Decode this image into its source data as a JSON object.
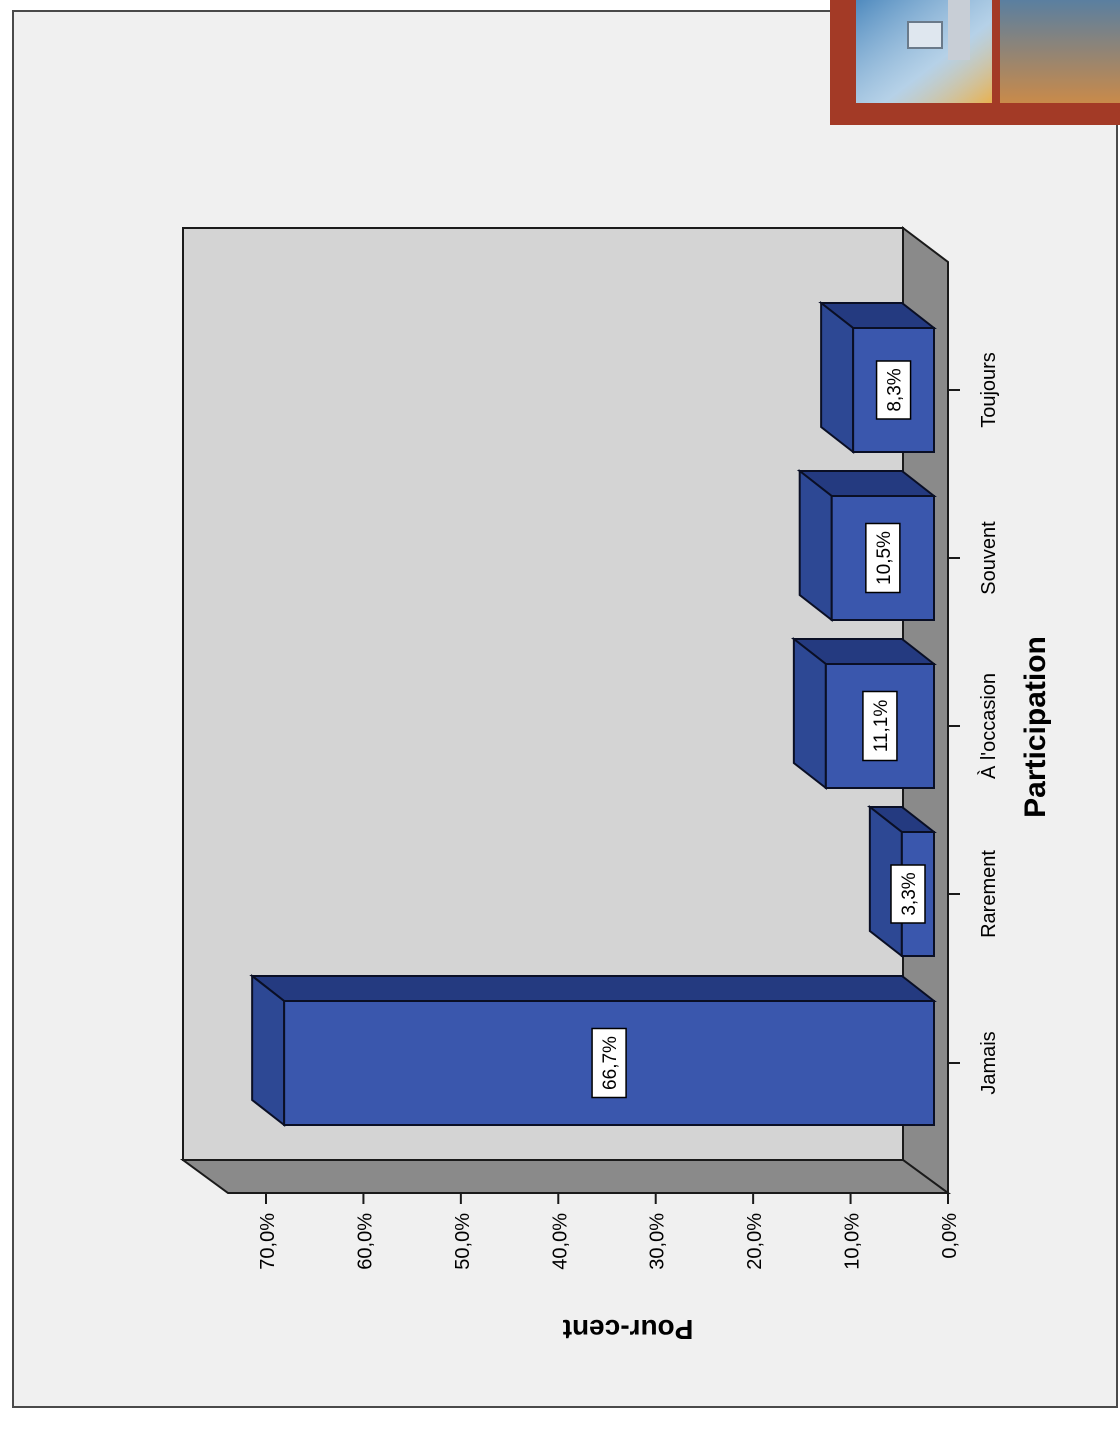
{
  "chart_data": {
    "type": "bar",
    "orientation": "rotated-90",
    "title": "",
    "xlabel": "Participation",
    "ylabel": "Pour-cent",
    "categories": [
      "Jamais",
      "Rarement",
      "À l'occasion",
      "Souvent",
      "Toujours"
    ],
    "values": [
      66.7,
      3.3,
      11.1,
      10.5,
      8.3
    ],
    "value_labels": [
      "66,7%",
      "3,3%",
      "11,1%",
      "10,5%",
      "8,3%"
    ],
    "ylim": [
      0,
      70
    ],
    "yticks": [
      0,
      10,
      20,
      30,
      40,
      50,
      60,
      70
    ],
    "ytick_labels": [
      "0,0%",
      "10,0%",
      "20,0%",
      "30,0%",
      "40,0%",
      "50,0%",
      "60,0%",
      "70,0%"
    ],
    "grid": false,
    "legend": "none",
    "style": "3d",
    "colors": {
      "bar_front": "#3a57ad",
      "bar_side": "#243a80",
      "bar_top": "#2d4894",
      "plot_back": "#d4d4d4",
      "plot_floor": "#8a8a8a",
      "frame_bg": "#f0f0f0"
    }
  },
  "decor": {
    "thumbnail_icon": "building-photo-icon"
  }
}
